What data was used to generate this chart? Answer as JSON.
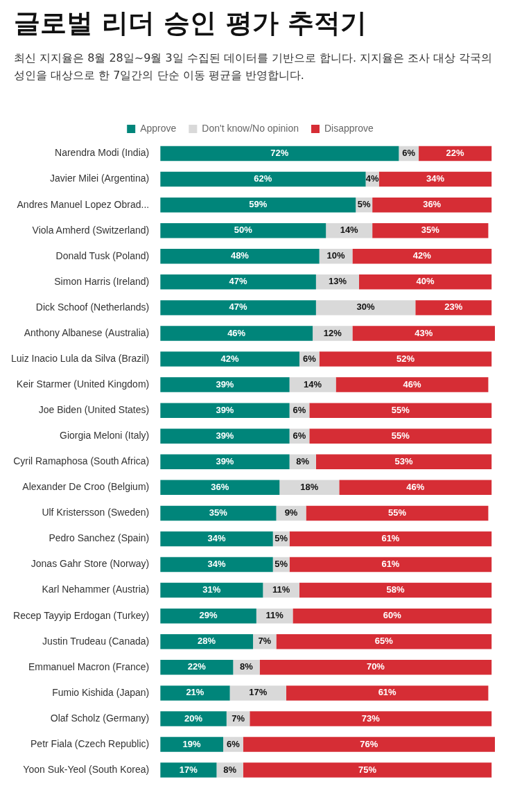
{
  "chart_data": {
    "type": "bar",
    "orientation": "horizontal",
    "stacked": true,
    "title": "글로벌 리더 승인 평가 추적기",
    "subtitle": "최신 지지율은 8월 28일~9월 3일 수집된 데이터를 기반으로 합니다. 지지율은 조사 대상 각국의 성인을 대상으로 한 7일간의 단순 이동 평균을 반영합니다.",
    "legend": "top",
    "categories": [
      "Narendra Modi (India)",
      "Javier Milei (Argentina)",
      "Andres Manuel Lopez Obrad...",
      "Viola Amherd (Switzerland)",
      "Donald Tusk (Poland)",
      "Simon Harris (Ireland)",
      "Dick Schoof (Netherlands)",
      "Anthony Albanese (Australia)",
      "Luiz Inacio Lula da Silva (Brazil)",
      "Keir Starmer (United Kingdom)",
      "Joe Biden (United States)",
      "Giorgia Meloni (Italy)",
      "Cyril Ramaphosa (South Africa)",
      "Alexander De Croo (Belgium)",
      "Ulf Kristersson (Sweden)",
      "Pedro Sanchez (Spain)",
      "Jonas Gahr Store (Norway)",
      "Karl Nehammer (Austria)",
      "Recep Tayyip Erdogan (Turkey)",
      "Justin Trudeau (Canada)",
      "Emmanuel Macron (France)",
      "Fumio Kishida (Japan)",
      "Olaf Scholz (Germany)",
      "Petr Fiala (Czech Republic)",
      "Yoon Suk-Yeol (South Korea)"
    ],
    "series": [
      {
        "name": "Approve",
        "color": "#00857a",
        "values": [
          72,
          62,
          59,
          50,
          48,
          47,
          47,
          46,
          42,
          39,
          39,
          39,
          39,
          36,
          35,
          34,
          34,
          31,
          29,
          28,
          22,
          21,
          20,
          19,
          17
        ],
        "value_labels": [
          "72%",
          "62%",
          "59%",
          "50%",
          "48%",
          "47%",
          "47%",
          "46%",
          "42%",
          "39%",
          "39%",
          "39%",
          "39%",
          "36%",
          "35%",
          "34%",
          "34%",
          "31%",
          "29%",
          "28%",
          "22%",
          "21%",
          "20%",
          "19%",
          "17%"
        ]
      },
      {
        "name": "Don't know/No opinion",
        "color": "#d9d9d9",
        "values": [
          6,
          4,
          5,
          14,
          10,
          13,
          30,
          12,
          6,
          14,
          6,
          6,
          8,
          18,
          9,
          5,
          5,
          11,
          11,
          7,
          8,
          17,
          7,
          6,
          8
        ],
        "value_labels": [
          "6%",
          "4%",
          "5%",
          "14%",
          "10%",
          "13%",
          "30%",
          "12%",
          "6%",
          "14%",
          "6%",
          "6%",
          "8%",
          "18%",
          "9%",
          "5%",
          "5%",
          "11%",
          "11%",
          "7%",
          "8%",
          "17%",
          "7%",
          "6%",
          "8%"
        ]
      },
      {
        "name": "Disapprove",
        "color": "#d62d35",
        "values": [
          22,
          34,
          36,
          35,
          42,
          40,
          23,
          43,
          52,
          46,
          55,
          55,
          53,
          46,
          55,
          61,
          61,
          58,
          60,
          65,
          70,
          61,
          73,
          76,
          75
        ],
        "value_labels": [
          "22%",
          "34%",
          "36%",
          "35%",
          "42%",
          "40%",
          "23%",
          "43%",
          "52%",
          "46%",
          "55%",
          "55%",
          "53%",
          "46%",
          "55%",
          "61%",
          "61%",
          "58%",
          "60%",
          "65%",
          "70%",
          "61%",
          "73%",
          "76%",
          "75%"
        ]
      }
    ]
  }
}
